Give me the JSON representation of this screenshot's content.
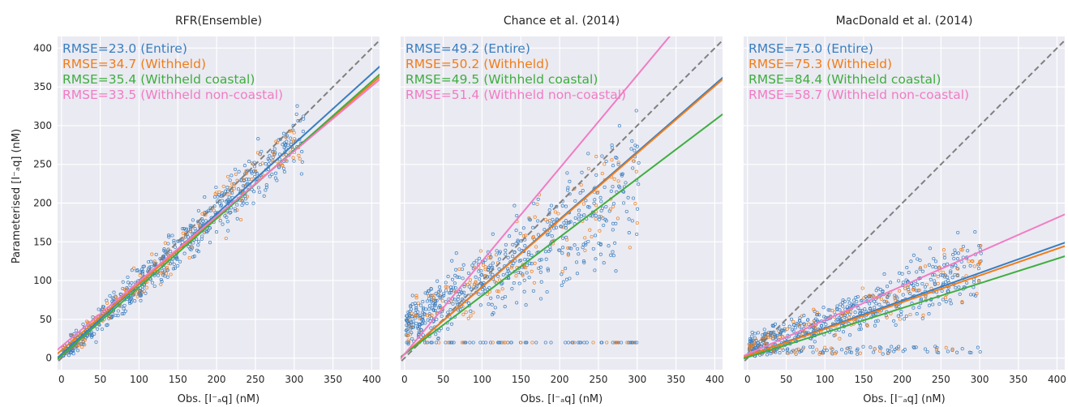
{
  "ylabel": "Parameterised [I⁻ₐq] (nM)",
  "xlabel": "Obs. [I⁻ₐq] (nM)",
  "colors": {
    "entire": "#3a7ebf",
    "withheld": "#f07d19",
    "coastal": "#3fae3f",
    "noncoastal": "#f17cc4",
    "one_to_one": "#808080",
    "bg": "#eaeaf2"
  },
  "chart_data": [
    {
      "type": "scatter",
      "title": "RFR(Ensemble)",
      "xlim": [
        -5,
        410
      ],
      "ylim": [
        -15,
        415
      ],
      "xticks": [
        0,
        50,
        100,
        150,
        200,
        250,
        300,
        350,
        400
      ],
      "yticks": [
        0,
        50,
        100,
        150,
        200,
        250,
        300,
        350,
        400
      ],
      "grid": true,
      "annotations": [
        {
          "text": "RMSE=23.0 (Entire)",
          "color": "#3a7ebf"
        },
        {
          "text": "RMSE=34.7 (Withheld)",
          "color": "#f07d19"
        },
        {
          "text": "RMSE=35.4 (Withheld coastal)",
          "color": "#3fae3f"
        },
        {
          "text": "RMSE=33.5 (Withheld non-coastal)",
          "color": "#f17cc4"
        }
      ],
      "fit_lines": [
        {
          "set": "Entire",
          "color": "#3a7ebf",
          "intercept": 5,
          "slope": 0.905
        },
        {
          "set": "Withheld",
          "color": "#f07d19",
          "intercept": 10,
          "slope": 0.86
        },
        {
          "set": "Withheld coastal",
          "color": "#3fae3f",
          "intercept": 3,
          "slope": 0.885
        },
        {
          "set": "Withheld non-coastal",
          "color": "#f17cc4",
          "intercept": 15,
          "slope": 0.84
        }
      ],
      "scatter_model": {
        "n_entire": 600,
        "n_withheld": 150,
        "xmax": 310,
        "slope": 0.92,
        "intercept": 4,
        "noise": 18
      }
    },
    {
      "type": "scatter",
      "title": "Chance et al. (2014)",
      "xlim": [
        -5,
        410
      ],
      "ylim": [
        -15,
        415
      ],
      "xticks": [
        0,
        50,
        100,
        150,
        200,
        250,
        300,
        350,
        400
      ],
      "yticks": [
        0,
        50,
        100,
        150,
        200,
        250,
        300,
        350,
        400
      ],
      "grid": true,
      "annotations": [
        {
          "text": "RMSE=49.2 (Entire)",
          "color": "#3a7ebf"
        },
        {
          "text": "RMSE=50.2 (Withheld)",
          "color": "#f07d19"
        },
        {
          "text": "RMSE=49.5 (Withheld coastal)",
          "color": "#3fae3f"
        },
        {
          "text": "RMSE=51.4 (Withheld non-coastal)",
          "color": "#f17cc4"
        }
      ],
      "fit_lines": [
        {
          "set": "Entire",
          "color": "#3a7ebf",
          "intercept": 5,
          "slope": 0.87
        },
        {
          "set": "Withheld",
          "color": "#f07d19",
          "intercept": 5,
          "slope": 0.865
        },
        {
          "set": "Withheld coastal",
          "color": "#3fae3f",
          "intercept": 5,
          "slope": 0.755
        },
        {
          "set": "Withheld non-coastal",
          "color": "#f17cc4",
          "intercept": 5,
          "slope": 1.2
        }
      ],
      "scatter_model": {
        "n_entire": 600,
        "n_withheld": 150,
        "xmax": 300,
        "slope": 0.62,
        "intercept": 40,
        "noise": 40
      }
    },
    {
      "type": "scatter",
      "title": "MacDonald et al. (2014)",
      "xlim": [
        -5,
        410
      ],
      "ylim": [
        -15,
        415
      ],
      "xticks": [
        0,
        50,
        100,
        150,
        200,
        250,
        300,
        350,
        400
      ],
      "yticks": [
        0,
        50,
        100,
        150,
        200,
        250,
        300,
        350,
        400
      ],
      "grid": true,
      "annotations": [
        {
          "text": "RMSE=75.0 (Entire)",
          "color": "#3a7ebf"
        },
        {
          "text": "RMSE=75.3 (Withheld)",
          "color": "#f07d19"
        },
        {
          "text": "RMSE=84.4 (Withheld coastal)",
          "color": "#3fae3f"
        },
        {
          "text": "RMSE=58.7 (Withheld non-coastal)",
          "color": "#f17cc4"
        }
      ],
      "fit_lines": [
        {
          "set": "Entire",
          "color": "#3a7ebf",
          "intercept": 3,
          "slope": 0.356
        },
        {
          "set": "Withheld",
          "color": "#f07d19",
          "intercept": 3,
          "slope": 0.345
        },
        {
          "set": "Withheld coastal",
          "color": "#3fae3f",
          "intercept": 1,
          "slope": 0.318
        },
        {
          "set": "Withheld non-coastal",
          "color": "#f17cc4",
          "intercept": 5,
          "slope": 0.44
        }
      ],
      "scatter_model": {
        "n_entire": 600,
        "n_withheld": 150,
        "xmax": 300,
        "slope": 0.35,
        "intercept": 12,
        "noise": 20
      }
    }
  ]
}
